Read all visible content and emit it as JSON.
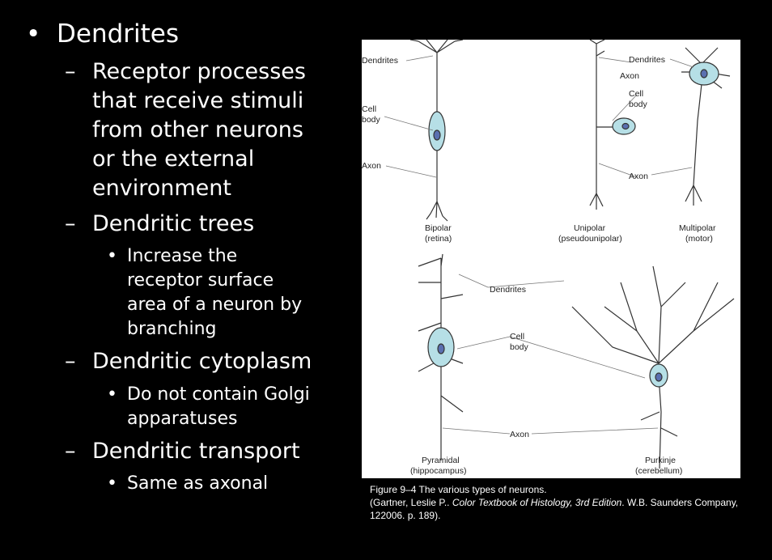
{
  "bullets": {
    "l1": {
      "marker": "•",
      "text": "Dendrites"
    },
    "d1": {
      "marker": "–",
      "lines": [
        "Receptor processes",
        "that receive stimuli",
        "from other neurons",
        "or the external",
        "environment"
      ]
    },
    "d2": {
      "marker": "–",
      "text": "Dendritic trees"
    },
    "d2a": {
      "marker": "•",
      "lines": [
        "Increase the",
        "receptor surface",
        "area of a neuron by",
        "branching"
      ]
    },
    "d3": {
      "marker": "–",
      "text": "Dendritic cytoplasm"
    },
    "d3a": {
      "marker": "•",
      "lines": [
        "Do not contain Golgi",
        "apparatuses"
      ]
    },
    "d4": {
      "marker": "–",
      "text": "Dendritic transport"
    },
    "d4a": {
      "marker": "•",
      "text": "Same as axonal"
    }
  },
  "figure": {
    "labels": {
      "dendrites": "Dendrites",
      "cell": "Cell",
      "body": "body",
      "axon": "Axon",
      "bipolar": "Bipolar",
      "bipolar_sub": "(retina)",
      "unipolar": "Unipolar",
      "unipolar_sub": "(pseudounipolar)",
      "multipolar": "Multipolar",
      "multipolar_sub": "(motor)",
      "pyramidal": "Pyramidal",
      "pyramidal_sub": "(hippocampus)",
      "purkinje": "Purkinje",
      "purkinje_sub": "(cerebellum)"
    },
    "colors": {
      "soma": "#b6dfe6",
      "nucleus": "#5a6fb0",
      "outline": "#333333"
    }
  },
  "caption": {
    "line1": "Figure 9–4 The various types of neurons.",
    "line2_pre": "(Gartner, Leslie P.. ",
    "line2_italic": "Color Textbook of Histology, 3rd Edition",
    "line2_post": ". W.B. Saunders Company,",
    "line3": "122006. p. 189)."
  }
}
